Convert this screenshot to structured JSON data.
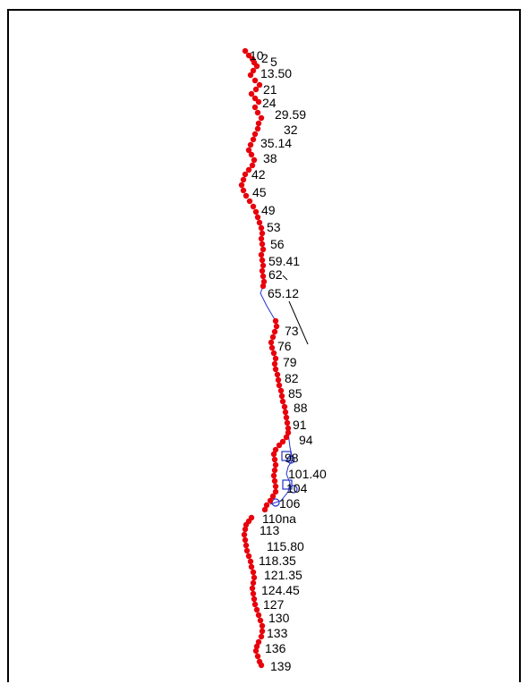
{
  "colors": {
    "dots": "#e8000b",
    "blue": "#2233cc",
    "line": "#000000",
    "frame": "#000000"
  },
  "labels": [
    "10",
    "2",
    "5",
    "13.50",
    "21",
    "24",
    "29.59",
    "32",
    "35.14",
    "38",
    "42",
    "45",
    "49",
    "53",
    "56",
    "59.41",
    "62",
    "65.12",
    "73",
    "76",
    "79",
    "82",
    "85",
    "88",
    "91",
    "94",
    "98",
    "101.40",
    "104",
    "106",
    "110na",
    "113",
    "115.80",
    "118.35",
    "121.35",
    "124.45",
    "127",
    "130",
    "133",
    "136",
    "139"
  ]
}
